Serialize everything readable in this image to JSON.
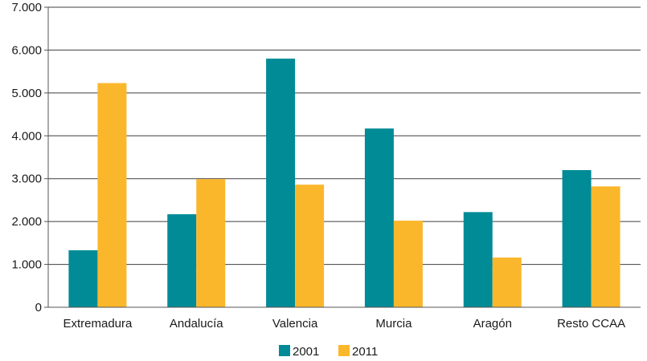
{
  "chart_data": {
    "type": "bar",
    "categories": [
      "Extremadura",
      "Andalucía",
      "Valencia",
      "Murcia",
      "Aragón",
      "Resto CCAA"
    ],
    "series": [
      {
        "name": "2001",
        "color": "#008b96",
        "values": [
          1330,
          2170,
          5800,
          4170,
          2220,
          3200
        ]
      },
      {
        "name": "2011",
        "color": "#fbb72b",
        "values": [
          5230,
          2990,
          2860,
          2020,
          1160,
          2820
        ]
      }
    ],
    "yticks": [
      0,
      1000,
      2000,
      3000,
      4000,
      5000,
      6000,
      7000
    ],
    "ytick_labels": [
      "0",
      "1.000",
      "2.000",
      "3.000",
      "4.000",
      "5.000",
      "6.000",
      "7.000"
    ],
    "ylim": [
      0,
      7000
    ],
    "grid": "horizontal",
    "legend_position": "bottom"
  }
}
